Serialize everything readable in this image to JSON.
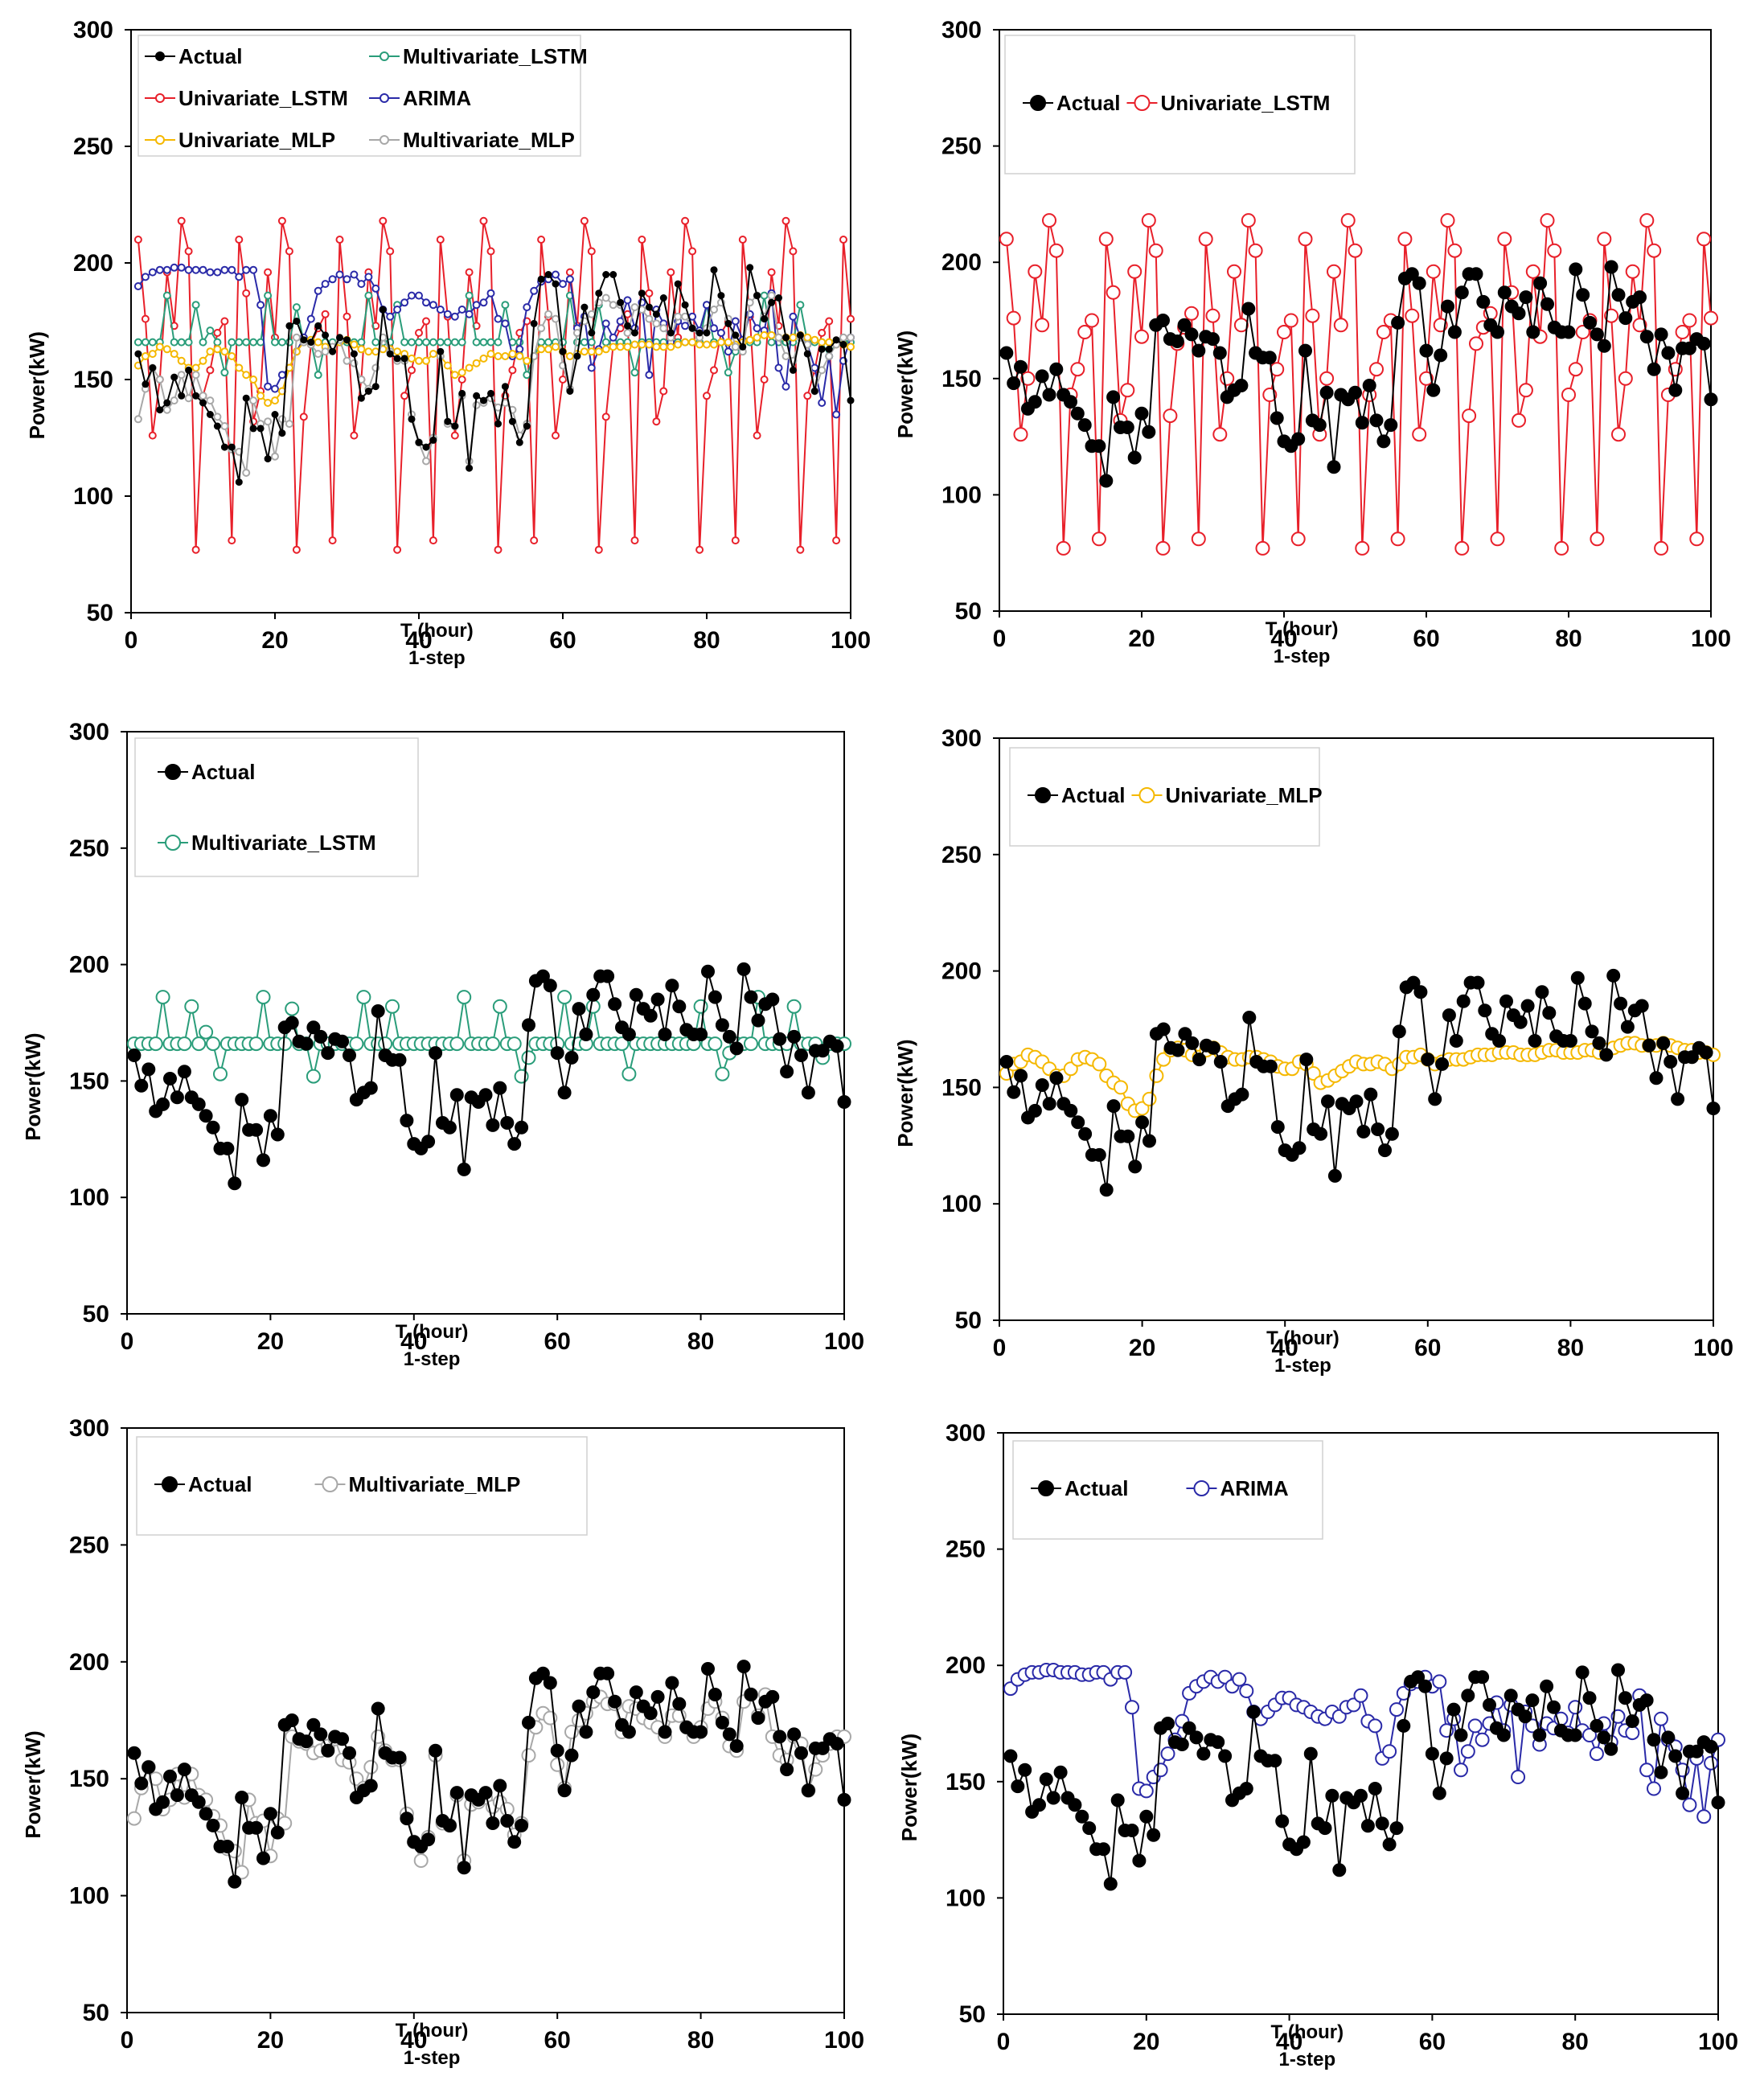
{
  "common": {
    "ylabel": "Power(kW)",
    "xlabel_line1": "T (hour)",
    "xlabel_line2": "1-step",
    "xlim": [
      0,
      100
    ],
    "ylim": [
      50,
      300
    ],
    "xticks": [
      0,
      20,
      40,
      60,
      80,
      100
    ],
    "yticks": [
      50,
      100,
      150,
      200,
      250,
      300
    ]
  },
  "colors": {
    "Actual": "#000000",
    "Univariate_LSTM": "#e8202a",
    "Multivariate_LSTM": "#2a9d7a",
    "ARIMA": "#2a2aa8",
    "Univariate_MLP": "#f5b800",
    "Multivariate_MLP": "#a8a8a8"
  },
  "chart_data": [
    {
      "type": "line",
      "xlabel": "T (hour)\n1-step",
      "ylabel": "Power(kW)",
      "legend": [
        "Actual",
        "Multivariate_LSTM",
        "Univariate_LSTM",
        "ARIMA",
        "Univariate_MLP",
        "Multivariate_MLP"
      ],
      "series": [
        "Actual",
        "Univariate_LSTM",
        "Multivariate_LSTM",
        "ARIMA",
        "Univariate_MLP",
        "Multivariate_MLP"
      ]
    },
    {
      "type": "line",
      "xlabel": "T (hour)\n1-step",
      "ylabel": "Power(kW)",
      "legend": [
        "Actual",
        "Univariate_LSTM"
      ],
      "series": [
        "Actual",
        "Univariate_LSTM"
      ]
    },
    {
      "type": "line",
      "xlabel": "T (hour)\n1-step",
      "ylabel": "Power(kW)",
      "legend": [
        "Actual",
        "Multivariate_LSTM"
      ],
      "series": [
        "Actual",
        "Multivariate_LSTM"
      ]
    },
    {
      "type": "line",
      "xlabel": "T (hour)\n1-step",
      "ylabel": "Power(kW)",
      "legend": [
        "Actual",
        "Univariate_MLP"
      ],
      "series": [
        "Actual",
        "Univariate_MLP"
      ]
    },
    {
      "type": "line",
      "xlabel": "T (hour)\n1-step",
      "ylabel": "Power(kW)",
      "legend": [
        "Actual",
        "Multivariate_MLP"
      ],
      "series": [
        "Actual",
        "Multivariate_MLP"
      ]
    },
    {
      "type": "line",
      "xlabel": "T (hour)\n1-step",
      "ylabel": "Power(kW)",
      "legend": [
        "Actual",
        "ARIMA"
      ],
      "series": [
        "Actual",
        "ARIMA"
      ]
    }
  ],
  "series_data": {
    "x_start": 1,
    "x_step": 1,
    "Actual": [
      161,
      148,
      155,
      137,
      140,
      151,
      143,
      154,
      143,
      140,
      135,
      130,
      121,
      121,
      106,
      142,
      129,
      129,
      116,
      135,
      127,
      173,
      175,
      167,
      166,
      173,
      169,
      162,
      168,
      167,
      161,
      142,
      145,
      147,
      180,
      161,
      159,
      159,
      133,
      123,
      121,
      124,
      162,
      132,
      130,
      144,
      112,
      143,
      141,
      144,
      131,
      147,
      132,
      123,
      130,
      174,
      193,
      195,
      191,
      162,
      145,
      160,
      181,
      170,
      187,
      195,
      195,
      183,
      173,
      170,
      187,
      181,
      178,
      185,
      170,
      191,
      182,
      172,
      170,
      170,
      197,
      186,
      174,
      169,
      164,
      198,
      186,
      176,
      183,
      185,
      168,
      154,
      169,
      161,
      145,
      163,
      163,
      167,
      165,
      141
    ],
    "Univariate_LSTM": [
      210,
      176,
      126,
      150,
      196,
      173,
      218,
      205,
      77,
      143,
      154,
      170,
      175,
      81,
      210,
      187,
      132,
      145,
      196,
      168,
      218,
      205,
      77,
      134,
      165,
      172,
      178,
      81,
      210,
      177,
      126,
      150,
      196,
      173,
      218,
      205,
      77,
      143,
      154,
      170,
      175,
      81,
      210,
      177,
      126,
      150,
      196,
      173,
      218,
      205,
      77,
      143,
      154,
      170,
      175,
      81,
      210,
      177,
      126,
      150,
      196,
      173,
      218,
      205,
      77,
      134,
      165,
      172,
      178,
      81,
      210,
      187,
      132,
      145,
      196,
      168,
      218,
      205,
      77,
      143,
      154,
      170,
      175,
      81,
      210,
      177,
      126,
      150,
      196,
      173,
      218,
      205,
      77,
      143,
      154,
      170,
      175,
      81,
      210,
      176
    ],
    "Multivariate_LSTM": [
      166,
      166,
      166,
      166,
      186,
      166,
      166,
      166,
      182,
      166,
      171,
      166,
      153,
      166,
      166,
      166,
      166,
      166,
      186,
      166,
      166,
      166,
      181,
      166,
      166,
      152,
      166,
      166,
      166,
      166,
      166,
      166,
      186,
      166,
      166,
      166,
      182,
      166,
      166,
      166,
      166,
      166,
      166,
      166,
      166,
      166,
      186,
      166,
      166,
      166,
      166,
      182,
      166,
      166,
      152,
      160,
      166,
      166,
      166,
      166,
      186,
      166,
      166,
      166,
      182,
      166,
      166,
      166,
      166,
      153,
      166,
      166,
      166,
      166,
      166,
      166,
      166,
      166,
      166,
      182,
      166,
      166,
      153,
      162,
      166,
      166,
      166,
      186,
      166,
      166,
      166,
      166,
      182,
      166,
      166,
      166,
      160,
      166,
      166,
      166
    ],
    "ARIMA": [
      190,
      194,
      196,
      197,
      197,
      198,
      198,
      197,
      197,
      197,
      196,
      196,
      197,
      197,
      194,
      197,
      197,
      182,
      147,
      146,
      152,
      155,
      162,
      168,
      176,
      188,
      191,
      193,
      195,
      193,
      195,
      191,
      194,
      189,
      180,
      177,
      180,
      183,
      186,
      186,
      183,
      182,
      180,
      178,
      177,
      180,
      178,
      182,
      183,
      187,
      176,
      174,
      160,
      163,
      181,
      188,
      192,
      193,
      195,
      191,
      193,
      172,
      177,
      155,
      163,
      174,
      168,
      175,
      184,
      172,
      183,
      152,
      180,
      174,
      166,
      175,
      173,
      177,
      171,
      182,
      172,
      170,
      162,
      175,
      167,
      178,
      172,
      171,
      187,
      155,
      147,
      177,
      168,
      165,
      155,
      140,
      160,
      135,
      158,
      168
    ],
    "Univariate_MLP": [
      156,
      160,
      161,
      164,
      163,
      161,
      158,
      155,
      155,
      158,
      162,
      163,
      162,
      160,
      155,
      152,
      150,
      143,
      140,
      141,
      145,
      155,
      162,
      166,
      167,
      166,
      164,
      163,
      166,
      167,
      165,
      163,
      162,
      162,
      163,
      163,
      162,
      161,
      159,
      158,
      158,
      161,
      160,
      156,
      152,
      153,
      155,
      157,
      159,
      161,
      160,
      160,
      161,
      160,
      158,
      160,
      163,
      163,
      164,
      162,
      160,
      161,
      162,
      162,
      162,
      163,
      164,
      164,
      164,
      165,
      165,
      165,
      164,
      164,
      164,
      165,
      166,
      166,
      165,
      165,
      165,
      166,
      166,
      165,
      166,
      167,
      168,
      169,
      169,
      168,
      168,
      168,
      169,
      168,
      167,
      166,
      166,
      165,
      165,
      164
    ],
    "Multivariate_MLP": [
      133,
      146,
      155,
      150,
      137,
      141,
      152,
      142,
      152,
      143,
      141,
      134,
      130,
      120,
      119,
      110,
      141,
      131,
      132,
      117,
      133,
      131,
      168,
      166,
      165,
      161,
      162,
      164,
      167,
      158,
      157,
      150,
      146,
      155,
      168,
      162,
      158,
      158,
      135,
      123,
      115,
      125,
      160,
      131,
      130,
      143,
      115,
      139,
      140,
      142,
      138,
      140,
      137,
      126,
      131,
      160,
      172,
      178,
      176,
      156,
      146,
      170,
      175,
      178,
      183,
      185,
      182,
      182,
      170,
      181,
      180,
      176,
      174,
      172,
      168,
      177,
      177,
      172,
      168,
      172,
      180,
      183,
      176,
      164,
      162,
      183,
      186,
      177,
      186,
      168,
      160,
      158,
      168,
      165,
      145,
      154,
      160,
      165,
      168,
      168
    ]
  },
  "panels": [
    {
      "legend_cols": [
        [
          "Actual",
          "Univariate_LSTM",
          "Univariate_MLP"
        ],
        [
          "Multivariate_LSTM",
          "ARIMA",
          "Multivariate_MLP"
        ]
      ]
    },
    {
      "legend_row": [
        "Actual",
        "Univariate_LSTM"
      ]
    },
    {
      "legend_col": [
        "Actual",
        "Multivariate_LSTM"
      ]
    },
    {
      "legend_row": [
        "Actual",
        "Univariate_MLP"
      ]
    },
    {
      "legend_row": [
        "Actual",
        "Multivariate_MLP"
      ]
    },
    {
      "legend_row": [
        "Actual",
        "ARIMA"
      ]
    }
  ]
}
